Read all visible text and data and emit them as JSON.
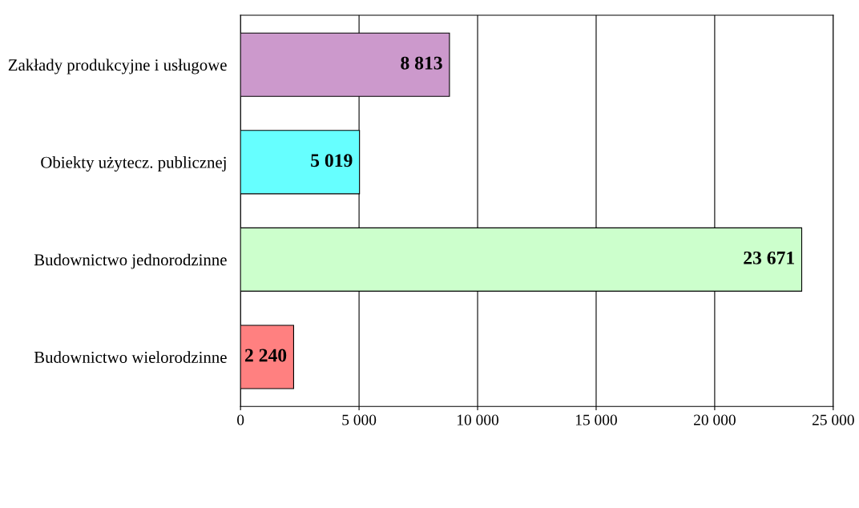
{
  "chart_data": {
    "type": "bar",
    "orientation": "horizontal",
    "categories": [
      "Zakłady produkcyjne i usługowe",
      "Obiekty użytecz. publicznej",
      "Budownictwo jednorodzinne",
      "Budownictwo wielorodzinne"
    ],
    "values": [
      8813,
      5019,
      23671,
      2240
    ],
    "colors": [
      "#cc99cc",
      "#66ffff",
      "#ccffcc",
      "#ff8080"
    ],
    "value_labels": [
      "8 813",
      "5 019",
      "23 671",
      "2 240"
    ],
    "xlim": [
      0,
      25000
    ],
    "xticks": [
      0,
      {
        "value": 5000,
        "label": "5 000"
      },
      {
        "value": 10000,
        "label": "10 000"
      },
      {
        "value": 15000,
        "label": "15 000"
      },
      {
        "value": 20000,
        "label": "20 000"
      },
      {
        "value": 25000,
        "label": "25 000"
      }
    ],
    "grid": "x"
  }
}
